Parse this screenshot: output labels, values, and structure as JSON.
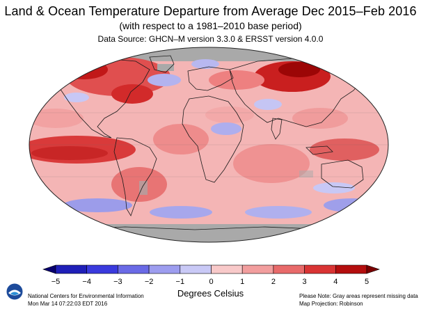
{
  "header": {
    "title": "Land & Ocean Temperature Departure from Average Dec 2015–Feb 2016",
    "subtitle": "(with respect to a 1981–2010 base period)",
    "source": "Data Source: GHCN–M version 3.3.0 & ERSST version 4.0.0"
  },
  "legend": {
    "ticks": [
      "−5",
      "−4",
      "−3",
      "−2",
      "−1",
      "0",
      "1",
      "2",
      "3",
      "4",
      "5"
    ],
    "units": "Degrees Celsius",
    "colors": [
      "#08006e",
      "#1f1fb8",
      "#3a3add",
      "#6a6ae6",
      "#9d9def",
      "#c9c9f6",
      "#f8c9c9",
      "#f29e9e",
      "#e86a6a",
      "#d93434",
      "#b40e0e",
      "#7a0000"
    ]
  },
  "footer": {
    "org_line1": "National Centers for Environmental Information",
    "org_line2": "Mon Mar 14 07:22:03 EDT 2016",
    "note_line1": "Please Note: Gray areas represent missing data",
    "note_line2": "Map Projection: Robinson"
  },
  "logo": {
    "icon": "noaa-logo-icon"
  },
  "map": {
    "missing_color": "#a9a9a9",
    "ocean_base_color": "#f4b1b1"
  }
}
